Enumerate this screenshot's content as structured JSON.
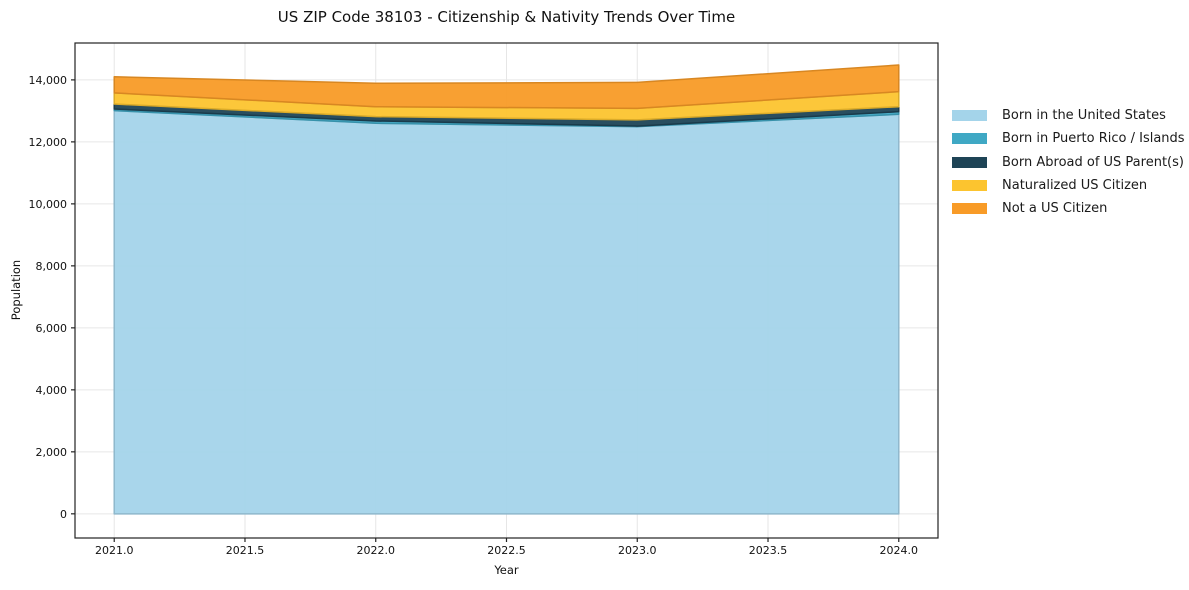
{
  "title": "US ZIP Code 38103 - Citizenship & Nativity Trends Over Time",
  "chart_data": {
    "type": "area",
    "stacked": true,
    "title": "US ZIP Code 38103 - Citizenship & Nativity Trends Over Time",
    "xlabel": "Year",
    "ylabel": "Population",
    "x": [
      2021,
      2022,
      2023,
      2024
    ],
    "series": [
      {
        "name": "Born in the United States",
        "color": "#a4d4ea",
        "values": [
          13010,
          12600,
          12490,
          12890
        ]
      },
      {
        "name": "Born in Puerto Rico / Islands",
        "color": "#3fa8c4",
        "values": [
          50,
          75,
          20,
          85
        ]
      },
      {
        "name": "Born Abroad of US Parent(s)",
        "color": "#1e4456",
        "values": [
          160,
          140,
          200,
          160
        ]
      },
      {
        "name": "Naturalized US Citizen",
        "color": "#fcc42f",
        "values": [
          360,
          320,
          370,
          485
        ]
      },
      {
        "name": "Not a US Citizen",
        "color": "#f89b27",
        "values": [
          520,
          755,
          840,
          860
        ]
      }
    ],
    "stack_totals": [
      14100,
      13890,
      13920,
      14480
    ],
    "xticks": {
      "values": [
        2021.0,
        2021.5,
        2022.0,
        2022.5,
        2023.0,
        2023.5,
        2024.0
      ],
      "labels": [
        "2021.0",
        "2021.5",
        "2022.0",
        "2022.5",
        "2023.0",
        "2023.5",
        "2024.0"
      ]
    },
    "yticks": {
      "values": [
        0,
        2000,
        4000,
        6000,
        8000,
        10000,
        12000,
        14000
      ],
      "labels": [
        "0",
        "2,000",
        "4,000",
        "6,000",
        "8,000",
        "10,000",
        "12,000",
        "14,000"
      ]
    },
    "xlim": [
      2020.85,
      2024.15
    ],
    "ylim": [
      -780,
      15190
    ],
    "grid": true,
    "legend_position": "right",
    "colors": {
      "grid": "#e6e6e6",
      "spine": "#222222",
      "text": "#111111",
      "background": "#ffffff"
    }
  }
}
